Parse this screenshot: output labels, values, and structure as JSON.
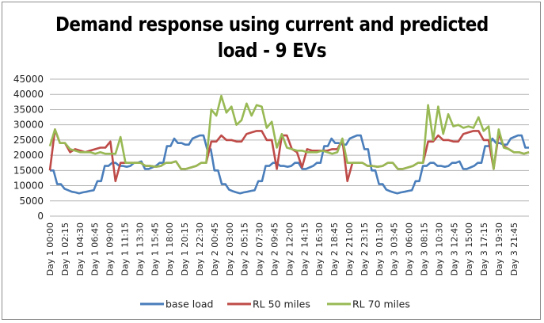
{
  "chart_data": {
    "type": "line",
    "title": "Demand response using current and predicted load - 9 EVs",
    "title_lines": [
      "Demand response using current and predicted",
      "load - 9 EVs"
    ],
    "xlabel": "",
    "ylabel": "",
    "ylim": [
      0,
      45000
    ],
    "yticks": [
      0,
      5000,
      10000,
      15000,
      20000,
      25000,
      30000,
      35000,
      40000,
      45000
    ],
    "grid": true,
    "legend_position": "bottom",
    "x_tick_labels": [
      "Day 1 00:00",
      "Day 1 02:15",
      "Day 1 04:30",
      "Day 1 06:45",
      "Day 1 09:00",
      "Day 1 11:15",
      "Day 1 13:30",
      "Day 1 15:45",
      "Day 1 18:00",
      "Day 1 20:15",
      "Day 1 22:30",
      "Day 2 00:45",
      "Day 2 03:00",
      "Day 2 05:15",
      "Day 2 07:30",
      "Day 2 09:45",
      "Day 2 12:00",
      "Day 2 14:15",
      "Day 2 16:30",
      "Day 2 18:45",
      "Day 2 21:00",
      "Day 2 23:15",
      "Day 3 01:30",
      "Day 3 03:45",
      "Day 3 06:00",
      "Day 3 08:15",
      "Day 3 10:30",
      "Day 3 12:45",
      "Day 3 15:00",
      "Day 3 17:15",
      "Day 3 19:30",
      "Day 3 21:45"
    ],
    "x_step_minutes": 45,
    "series": [
      {
        "name": "base load",
        "color": "#4a7ebb",
        "values": [
          15000,
          15000,
          10500,
          10500,
          9000,
          8500,
          8000,
          7800,
          7500,
          7800,
          8000,
          8300,
          8500,
          11500,
          11500,
          16500,
          16500,
          17500,
          17500,
          16500,
          16500,
          16200,
          16500,
          17500,
          17500,
          18000,
          15500,
          15500,
          16000,
          16500,
          17500,
          17500,
          23000,
          23000,
          25500,
          24000,
          24000,
          23500,
          23500,
          25500,
          26000,
          26500,
          26500,
          22000,
          22000,
          15000,
          15000,
          10500,
          10500,
          8700,
          8200,
          7800,
          7500,
          7800,
          8000,
          8300,
          8500,
          11500,
          11500,
          16500,
          16500,
          17500,
          17500,
          16500,
          16500,
          16200,
          16500,
          17500,
          17500,
          15500,
          15500,
          16000,
          16500,
          17500,
          17500,
          23000,
          23000,
          25500,
          24000,
          24000,
          23500,
          23500,
          25500,
          26000,
          26500,
          26500,
          22000,
          22000,
          15000,
          15000,
          10500,
          10500,
          8700,
          8200,
          7800,
          7500
        ],
        "values_day3_tail": [
          7800,
          8000,
          8300,
          8500,
          11500,
          11500,
          16500,
          16500,
          17500,
          17500,
          16500,
          16500,
          16200,
          16500,
          17500,
          17500,
          18000,
          15500,
          15500,
          16000,
          16500,
          17500,
          17500,
          23000,
          23000,
          25500,
          24000,
          24000,
          23500,
          23500,
          25500,
          26000,
          26500,
          26500,
          22500,
          22500
        ]
      },
      {
        "name": "RL 50 miles",
        "color": "#be4b48",
        "values": [
          15000,
          28500,
          24000,
          24000,
          21000,
          22000,
          21500,
          21000,
          21500,
          22000,
          22500,
          22500,
          24500,
          11500,
          17500,
          17500,
          17500,
          17500,
          17500,
          16500,
          16500,
          16200,
          16500,
          17500,
          17500,
          18000,
          15500,
          15500,
          16000,
          16500,
          17500,
          17500,
          24500,
          24500,
          26500,
          25000,
          25000,
          24500,
          24500,
          27000,
          27500,
          28000,
          28000,
          25000,
          25000,
          15500,
          26500,
          26500,
          22000,
          21000,
          16000,
          22000,
          21500,
          21500,
          21500,
          21500,
          22000,
          22000,
          25000,
          11500,
          17500,
          17500,
          17500,
          16500,
          16500,
          16200,
          16500,
          17500,
          17500,
          15500,
          15500,
          16000,
          16500,
          17500,
          17500,
          24500,
          24500,
          26500,
          25000,
          25000,
          24500,
          24500,
          27000,
          27500,
          28000,
          28000,
          25000,
          25000,
          15500,
          27000,
          23000,
          22000,
          21000,
          21000,
          20500,
          21000
        ]
      },
      {
        "name": "RL 70 miles",
        "color": "#98b954",
        "values": [
          23000,
          28500,
          24000,
          24000,
          22000,
          21500,
          21000,
          21000,
          21000,
          20500,
          21000,
          20500,
          20500,
          20500,
          26000,
          17500,
          17500,
          17500,
          17500,
          16500,
          16500,
          16200,
          16500,
          17500,
          17500,
          18000,
          15500,
          15500,
          16000,
          16500,
          17500,
          17500,
          35000,
          33000,
          39500,
          34000,
          36000,
          30000,
          31500,
          37000,
          33000,
          36500,
          36000,
          29000,
          31000,
          22500,
          27000,
          22500,
          22000,
          21500,
          21500,
          21000,
          21000,
          21000,
          21500,
          21000,
          20500,
          21000,
          25500,
          17500,
          17500,
          17500,
          17500,
          16500,
          16500,
          16200,
          16500,
          17500,
          17500,
          15500,
          15500,
          16000,
          16500,
          17500,
          17500,
          36500,
          25000,
          36000,
          27000,
          33500,
          29500,
          30000,
          29000,
          29500,
          29000,
          32500,
          28000,
          29500,
          15500,
          28500,
          22500,
          22000,
          21000,
          21000,
          20500,
          21000
        ]
      }
    ]
  },
  "legend": {
    "items": [
      {
        "label": "base load",
        "color": "#4a7ebb"
      },
      {
        "label": "RL 50 miles",
        "color": "#be4b48"
      },
      {
        "label": "RL 70 miles",
        "color": "#98b954"
      }
    ]
  }
}
